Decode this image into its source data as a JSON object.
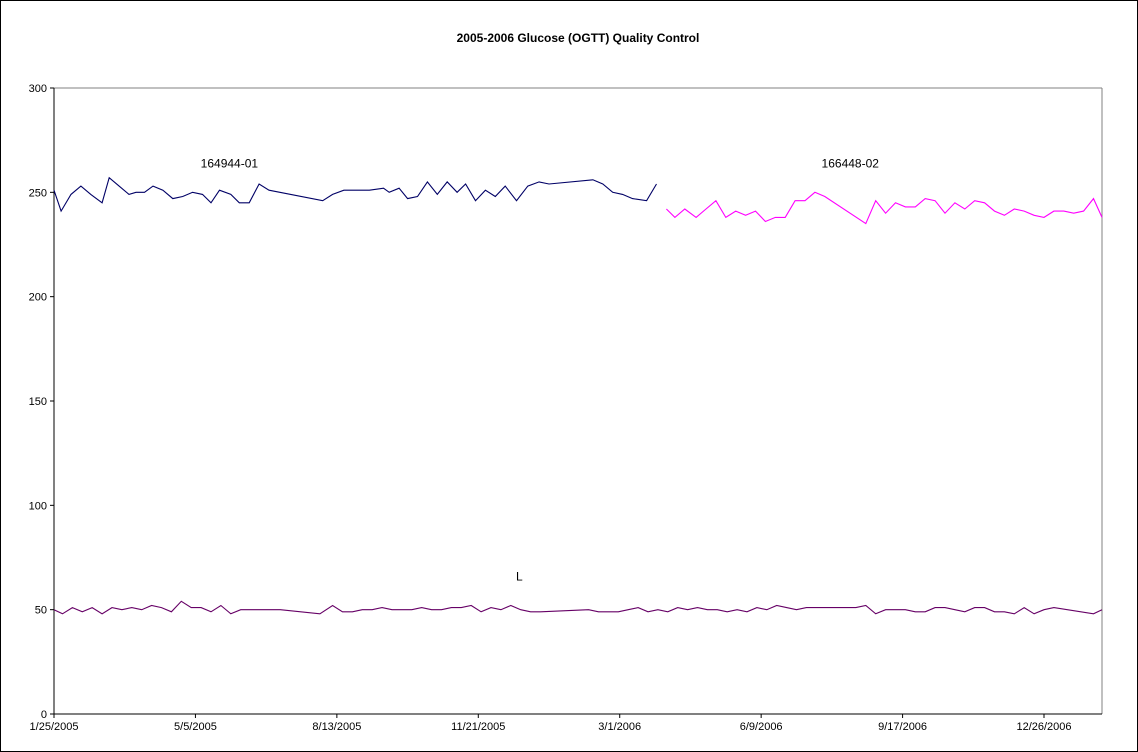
{
  "chart_data": {
    "type": "line",
    "title": "2005-2006  Glucose  (OGTT) Quality Control",
    "xlabel": "",
    "ylabel": "",
    "ylim": [
      0,
      300
    ],
    "yticks": [
      0,
      50,
      100,
      150,
      200,
      250,
      300
    ],
    "xlim": [
      "2005-01-25",
      "2007-02-05"
    ],
    "xtick_labels": [
      "1/25/2005",
      "5/5/2005",
      "8/13/2005",
      "11/21/2005",
      "3/1/2006",
      "6/9/2006",
      "9/17/2006",
      "12/26/2006"
    ],
    "xtick_dates": [
      "2005-01-25",
      "2005-05-05",
      "2005-08-13",
      "2005-11-21",
      "2006-03-01",
      "2006-06-09",
      "2006-09-17",
      "2006-12-26"
    ],
    "grid": false,
    "legend": "none",
    "annotations": [
      {
        "text": "164944-01",
        "x": "2005-05-29",
        "y": 262
      },
      {
        "text": "166448-02",
        "x": "2006-08-11",
        "y": 262
      },
      {
        "text": "L",
        "x": "2005-12-20",
        "y": 64
      }
    ],
    "series": [
      {
        "color": "#000066",
        "points": [
          [
            "2005-01-25",
            251
          ],
          [
            "2005-01-30",
            241
          ],
          [
            "2005-02-06",
            249
          ],
          [
            "2005-02-13",
            253
          ],
          [
            "2005-02-20",
            249
          ],
          [
            "2005-02-28",
            245
          ],
          [
            "2005-03-05",
            257
          ],
          [
            "2005-03-12",
            253
          ],
          [
            "2005-03-19",
            249
          ],
          [
            "2005-03-24",
            250
          ],
          [
            "2005-03-30",
            250
          ],
          [
            "2005-04-05",
            253
          ],
          [
            "2005-04-12",
            251
          ],
          [
            "2005-04-19",
            247
          ],
          [
            "2005-04-26",
            248
          ],
          [
            "2005-05-03",
            250
          ],
          [
            "2005-05-10",
            249
          ],
          [
            "2005-05-16",
            245
          ],
          [
            "2005-05-22",
            251
          ],
          [
            "2005-05-30",
            249
          ],
          [
            "2005-06-05",
            245
          ],
          [
            "2005-06-12",
            245
          ],
          [
            "2005-06-19",
            254
          ],
          [
            "2005-06-26",
            251
          ],
          [
            "2005-08-03",
            246
          ],
          [
            "2005-08-10",
            249
          ],
          [
            "2005-08-18",
            251
          ],
          [
            "2005-09-05",
            251
          ],
          [
            "2005-09-15",
            252
          ],
          [
            "2005-09-19",
            250
          ],
          [
            "2005-09-26",
            252
          ],
          [
            "2005-10-02",
            247
          ],
          [
            "2005-10-09",
            248
          ],
          [
            "2005-10-16",
            255
          ],
          [
            "2005-10-23",
            249
          ],
          [
            "2005-10-30",
            255
          ],
          [
            "2005-11-06",
            250
          ],
          [
            "2005-11-12",
            254
          ],
          [
            "2005-11-19",
            246
          ],
          [
            "2005-11-26",
            251
          ],
          [
            "2005-12-03",
            248
          ],
          [
            "2005-12-10",
            253
          ],
          [
            "2005-12-18",
            246
          ],
          [
            "2005-12-26",
            253
          ],
          [
            "2006-01-03",
            255
          ],
          [
            "2006-01-10",
            254
          ],
          [
            "2006-02-10",
            256
          ],
          [
            "2006-02-17",
            254
          ],
          [
            "2006-02-24",
            250
          ],
          [
            "2006-03-03",
            249
          ],
          [
            "2006-03-10",
            247
          ],
          [
            "2006-03-20",
            246
          ],
          [
            "2006-03-27",
            254
          ]
        ]
      },
      {
        "color": "#ff00ff",
        "points": [
          [
            "2006-04-03",
            242
          ],
          [
            "2006-04-09",
            238
          ],
          [
            "2006-04-16",
            242
          ],
          [
            "2006-04-24",
            238
          ],
          [
            "2006-05-01",
            242
          ],
          [
            "2006-05-08",
            246
          ],
          [
            "2006-05-15",
            238
          ],
          [
            "2006-05-22",
            241
          ],
          [
            "2006-05-29",
            239
          ],
          [
            "2006-06-05",
            241
          ],
          [
            "2006-06-12",
            236
          ],
          [
            "2006-06-19",
            238
          ],
          [
            "2006-06-26",
            238
          ],
          [
            "2006-07-03",
            246
          ],
          [
            "2006-07-10",
            246
          ],
          [
            "2006-07-17",
            250
          ],
          [
            "2006-07-24",
            248
          ],
          [
            "2006-08-22",
            235
          ],
          [
            "2006-08-29",
            246
          ],
          [
            "2006-09-05",
            240
          ],
          [
            "2006-09-12",
            245
          ],
          [
            "2006-09-19",
            243
          ],
          [
            "2006-09-26",
            243
          ],
          [
            "2006-10-03",
            247
          ],
          [
            "2006-10-10",
            246
          ],
          [
            "2006-10-17",
            240
          ],
          [
            "2006-10-24",
            245
          ],
          [
            "2006-10-31",
            242
          ],
          [
            "2006-11-07",
            246
          ],
          [
            "2006-11-14",
            245
          ],
          [
            "2006-11-21",
            241
          ],
          [
            "2006-11-28",
            239
          ],
          [
            "2006-12-05",
            242
          ],
          [
            "2006-12-12",
            241
          ],
          [
            "2006-12-19",
            239
          ],
          [
            "2006-12-26",
            238
          ],
          [
            "2007-01-02",
            241
          ],
          [
            "2007-01-09",
            241
          ],
          [
            "2007-01-16",
            240
          ],
          [
            "2007-01-23",
            241
          ],
          [
            "2007-01-30",
            247
          ],
          [
            "2007-02-05",
            238
          ]
        ]
      },
      {
        "color": "#660066",
        "points": [
          [
            "2005-01-25",
            50
          ],
          [
            "2005-01-31",
            48
          ],
          [
            "2005-02-07",
            51
          ],
          [
            "2005-02-14",
            49
          ],
          [
            "2005-02-21",
            51
          ],
          [
            "2005-02-28",
            48
          ],
          [
            "2005-03-07",
            51
          ],
          [
            "2005-03-14",
            50
          ],
          [
            "2005-03-21",
            51
          ],
          [
            "2005-03-28",
            50
          ],
          [
            "2005-04-04",
            52
          ],
          [
            "2005-04-11",
            51
          ],
          [
            "2005-04-18",
            49
          ],
          [
            "2005-04-25",
            54
          ],
          [
            "2005-05-02",
            51
          ],
          [
            "2005-05-09",
            51
          ],
          [
            "2005-05-16",
            49
          ],
          [
            "2005-05-23",
            52
          ],
          [
            "2005-05-30",
            48
          ],
          [
            "2005-06-06",
            50
          ],
          [
            "2005-06-13",
            50
          ],
          [
            "2005-06-20",
            50
          ],
          [
            "2005-06-27",
            50
          ],
          [
            "2005-07-04",
            50
          ],
          [
            "2005-08-01",
            48
          ],
          [
            "2005-08-10",
            52
          ],
          [
            "2005-08-17",
            49
          ],
          [
            "2005-08-24",
            49
          ],
          [
            "2005-08-31",
            50
          ],
          [
            "2005-09-07",
            50
          ],
          [
            "2005-09-14",
            51
          ],
          [
            "2005-09-21",
            50
          ],
          [
            "2005-09-28",
            50
          ],
          [
            "2005-10-05",
            50
          ],
          [
            "2005-10-12",
            51
          ],
          [
            "2005-10-19",
            50
          ],
          [
            "2005-10-26",
            50
          ],
          [
            "2005-11-02",
            51
          ],
          [
            "2005-11-09",
            51
          ],
          [
            "2005-11-16",
            52
          ],
          [
            "2005-11-23",
            49
          ],
          [
            "2005-11-30",
            51
          ],
          [
            "2005-12-07",
            50
          ],
          [
            "2005-12-14",
            52
          ],
          [
            "2005-12-21",
            50
          ],
          [
            "2005-12-28",
            49
          ],
          [
            "2006-01-04",
            49
          ],
          [
            "2006-02-07",
            50
          ],
          [
            "2006-02-14",
            49
          ],
          [
            "2006-02-21",
            49
          ],
          [
            "2006-02-28",
            49
          ],
          [
            "2006-03-07",
            50
          ],
          [
            "2006-03-14",
            51
          ],
          [
            "2006-03-21",
            49
          ],
          [
            "2006-03-28",
            50
          ],
          [
            "2006-04-04",
            49
          ],
          [
            "2006-04-11",
            51
          ],
          [
            "2006-04-18",
            50
          ],
          [
            "2006-04-25",
            51
          ],
          [
            "2006-05-02",
            50
          ],
          [
            "2006-05-09",
            50
          ],
          [
            "2006-05-16",
            49
          ],
          [
            "2006-05-23",
            50
          ],
          [
            "2006-05-30",
            49
          ],
          [
            "2006-06-06",
            51
          ],
          [
            "2006-06-13",
            50
          ],
          [
            "2006-06-20",
            52
          ],
          [
            "2006-06-27",
            51
          ],
          [
            "2006-07-04",
            50
          ],
          [
            "2006-07-11",
            51
          ],
          [
            "2006-07-18",
            51
          ],
          [
            "2006-08-15",
            51
          ],
          [
            "2006-08-22",
            52
          ],
          [
            "2006-08-29",
            48
          ],
          [
            "2006-09-05",
            50
          ],
          [
            "2006-09-12",
            50
          ],
          [
            "2006-09-19",
            50
          ],
          [
            "2006-09-26",
            49
          ],
          [
            "2006-10-03",
            49
          ],
          [
            "2006-10-10",
            51
          ],
          [
            "2006-10-17",
            51
          ],
          [
            "2006-10-24",
            50
          ],
          [
            "2006-10-31",
            49
          ],
          [
            "2006-11-07",
            51
          ],
          [
            "2006-11-14",
            51
          ],
          [
            "2006-11-21",
            49
          ],
          [
            "2006-11-28",
            49
          ],
          [
            "2006-12-05",
            48
          ],
          [
            "2006-12-12",
            51
          ],
          [
            "2006-12-19",
            48
          ],
          [
            "2006-12-26",
            50
          ],
          [
            "2007-01-02",
            51
          ],
          [
            "2007-01-30",
            48
          ],
          [
            "2007-02-05",
            50
          ]
        ]
      }
    ]
  }
}
